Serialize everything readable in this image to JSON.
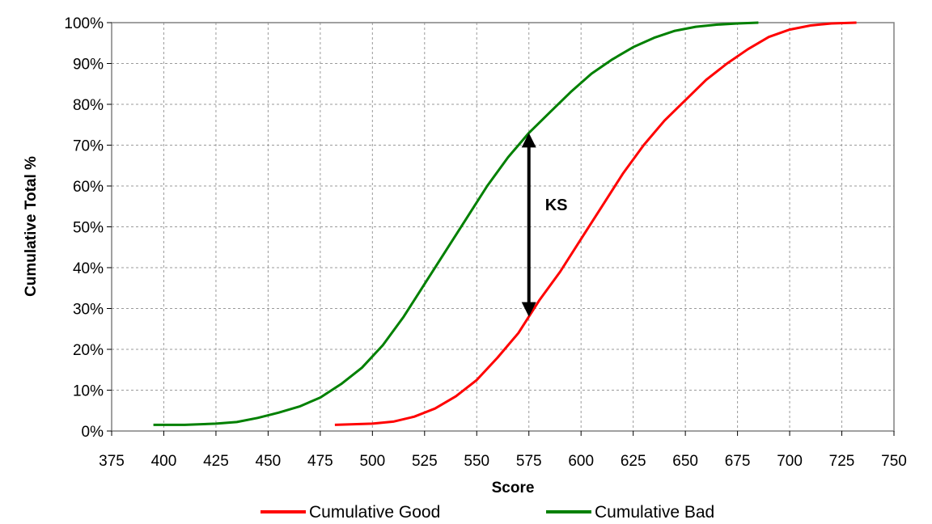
{
  "chart_data": {
    "type": "line",
    "title": "",
    "xlabel": "Score",
    "ylabel": "Cumulative Total %",
    "xlim": [
      375,
      750
    ],
    "ylim": [
      0,
      100
    ],
    "x_ticks": [
      375,
      400,
      425,
      450,
      475,
      500,
      525,
      550,
      575,
      600,
      625,
      650,
      675,
      700,
      725,
      750
    ],
    "y_ticks": [
      0,
      10,
      20,
      30,
      40,
      50,
      60,
      70,
      80,
      90,
      100
    ],
    "y_tick_labels": [
      "0%",
      "10%",
      "20%",
      "30%",
      "40%",
      "50%",
      "60%",
      "70%",
      "80%",
      "90%",
      "100%"
    ],
    "grid": true,
    "legend_position": "bottom",
    "series": [
      {
        "name": "Cumulative Good",
        "color": "#ff0000",
        "x": [
          482,
          500,
          510,
          520,
          530,
          540,
          550,
          560,
          570,
          575,
          580,
          590,
          600,
          610,
          620,
          630,
          640,
          650,
          660,
          670,
          680,
          690,
          700,
          710,
          720,
          732
        ],
        "y": [
          1.5,
          1.8,
          2.3,
          3.5,
          5.5,
          8.5,
          12.5,
          18,
          24,
          28,
          32,
          39,
          47,
          55,
          63,
          70,
          76,
          81,
          86,
          90,
          93.5,
          96.5,
          98.3,
          99.3,
          99.8,
          100
        ]
      },
      {
        "name": "Cumulative Bad",
        "color": "#008000",
        "x": [
          395,
          410,
          425,
          435,
          445,
          455,
          465,
          475,
          485,
          495,
          505,
          515,
          525,
          535,
          545,
          555,
          565,
          575,
          585,
          595,
          605,
          615,
          625,
          635,
          645,
          655,
          665,
          675,
          685
        ],
        "y": [
          1.5,
          1.5,
          1.8,
          2.2,
          3.2,
          4.5,
          6,
          8.2,
          11.5,
          15.5,
          21,
          28,
          36,
          44,
          52,
          60,
          67,
          73,
          78,
          83,
          87.5,
          91,
          94,
          96.3,
          98,
          99,
          99.5,
          99.8,
          100
        ]
      }
    ],
    "annotations": [
      {
        "text": "KS",
        "x": 575,
        "y_from": 28,
        "y_to": 73,
        "type": "double-arrow"
      }
    ]
  },
  "legend": {
    "good_label": "Cumulative Good",
    "bad_label": "Cumulative Bad"
  },
  "annotation_label": "KS"
}
